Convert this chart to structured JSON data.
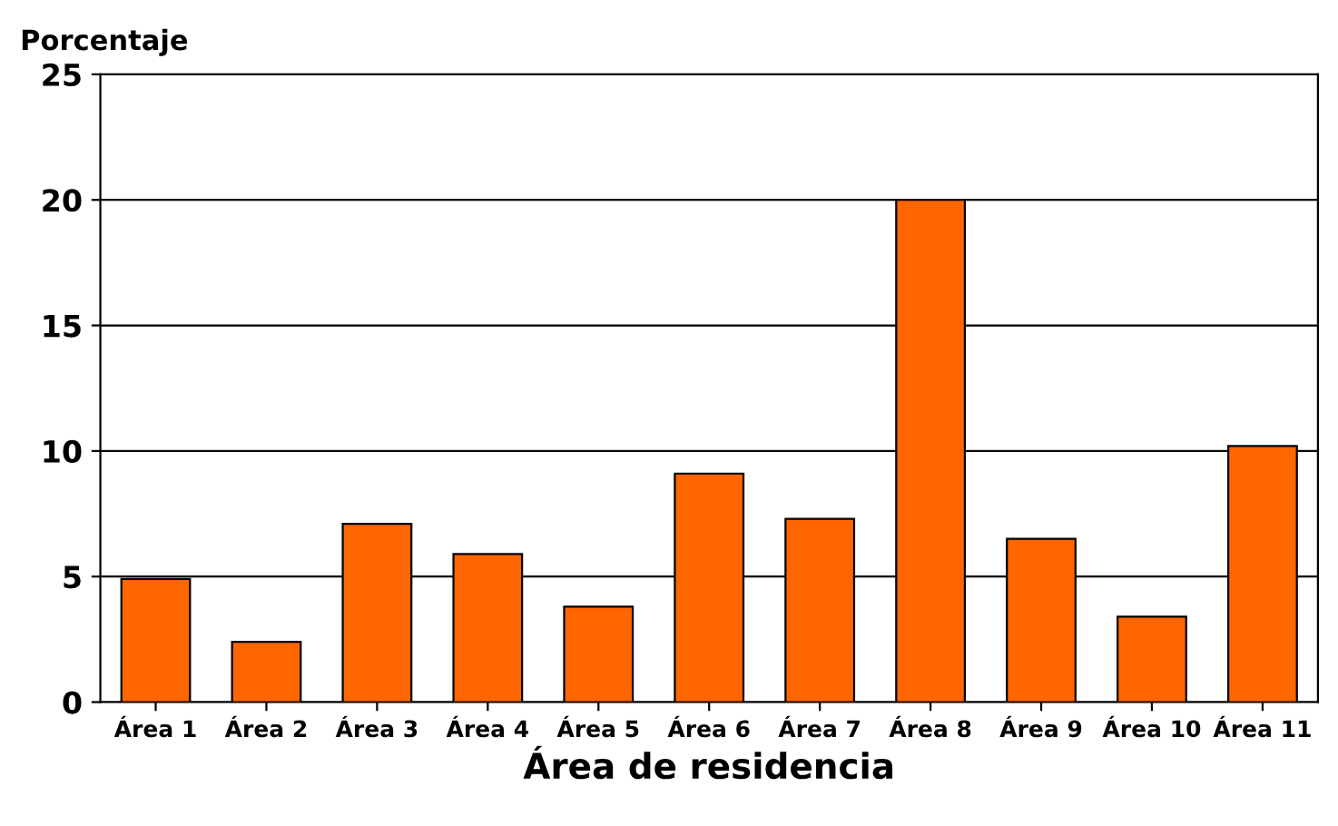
{
  "chart_data": {
    "type": "bar",
    "xlabel": "Área de residencia",
    "ylabel": "Porcentaje",
    "categories": [
      "Área 1",
      "Área 2",
      "Área 3",
      "Área 4",
      "Área 5",
      "Área 6",
      "Área 7",
      "Área 8",
      "Área 9",
      "Área 10",
      "Área 11"
    ],
    "values": [
      4.9,
      2.4,
      7.1,
      5.9,
      3.8,
      9.1,
      7.3,
      20.0,
      6.5,
      3.4,
      10.2
    ],
    "color": "#ff6600",
    "ylim": [
      0,
      25
    ],
    "yticks": [
      0,
      5,
      10,
      15,
      20,
      25
    ],
    "grid": "y"
  }
}
